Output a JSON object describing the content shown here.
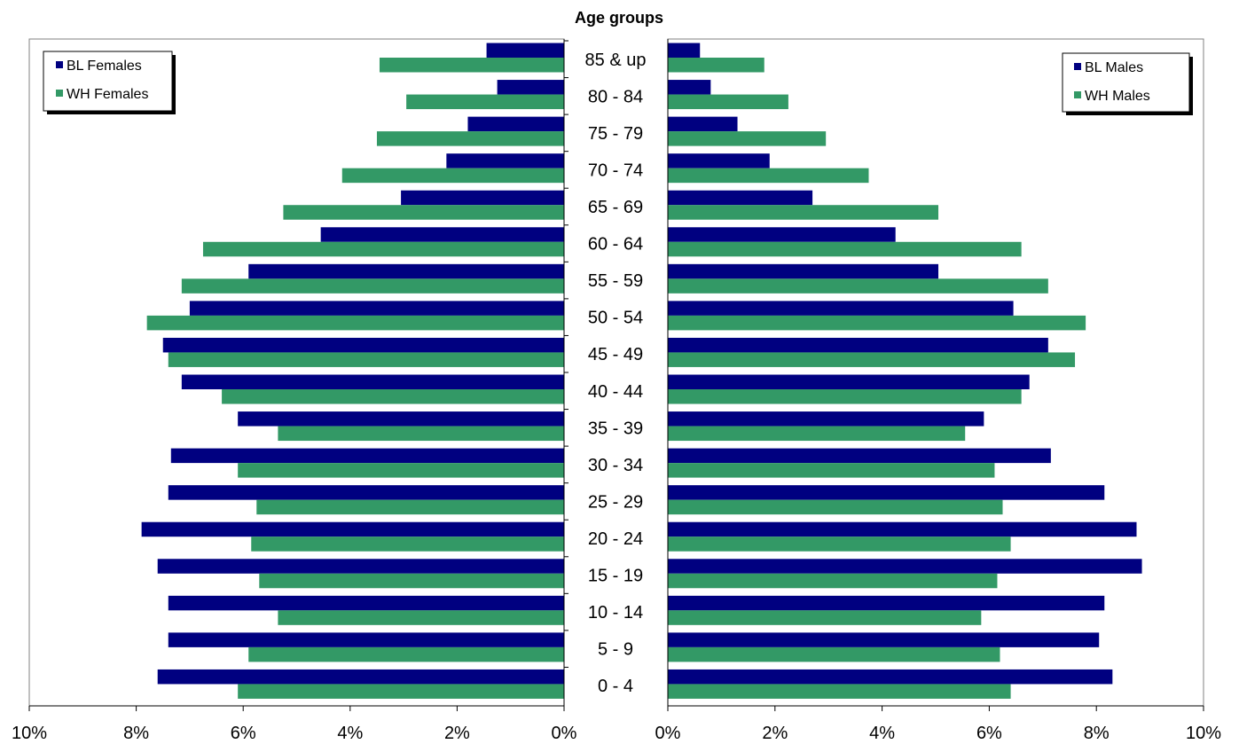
{
  "chart_data": {
    "type": "bar",
    "orientation": "horizontal",
    "title": "Age groups",
    "categories": [
      "0 - 4",
      "5 - 9",
      "10 - 14",
      "15 - 19",
      "20 - 24",
      "25 - 29",
      "30 - 34",
      "35 - 39",
      "40 - 44",
      "45 - 49",
      "50 - 54",
      "55 - 59",
      "60 - 64",
      "65 - 69",
      "70 - 74",
      "75 - 79",
      "80 - 84",
      "85 & up"
    ],
    "xlim": [
      0,
      10
    ],
    "x_ticks": [
      "0%",
      "2%",
      "4%",
      "6%",
      "8%",
      "10%"
    ],
    "grid": false,
    "panels": {
      "females": {
        "legend_position": "top-left",
        "series": [
          {
            "name": "BL Females",
            "color": "#000080",
            "values": [
              7.6,
              7.4,
              7.4,
              7.6,
              7.9,
              7.4,
              7.35,
              6.1,
              7.15,
              7.5,
              7.0,
              5.9,
              4.55,
              3.05,
              2.2,
              1.8,
              1.25,
              1.45
            ]
          },
          {
            "name": "WH Females",
            "color": "#339966",
            "values": [
              6.1,
              5.9,
              5.35,
              5.7,
              5.85,
              5.75,
              6.1,
              5.35,
              6.4,
              7.4,
              7.8,
              7.15,
              6.75,
              5.25,
              4.15,
              3.5,
              2.95,
              3.45
            ]
          }
        ]
      },
      "males": {
        "legend_position": "top-right",
        "series": [
          {
            "name": "BL Males",
            "color": "#000080",
            "values": [
              8.3,
              8.05,
              8.15,
              8.85,
              8.75,
              8.15,
              7.15,
              5.9,
              6.75,
              7.1,
              6.45,
              5.05,
              4.25,
              2.7,
              1.9,
              1.3,
              0.8,
              0.6
            ]
          },
          {
            "name": "WH Males",
            "color": "#339966",
            "values": [
              6.4,
              6.2,
              5.85,
              6.15,
              6.4,
              6.25,
              6.1,
              5.55,
              6.6,
              7.6,
              7.8,
              7.1,
              6.6,
              5.05,
              3.75,
              2.95,
              2.25,
              1.8
            ]
          }
        ]
      }
    }
  }
}
